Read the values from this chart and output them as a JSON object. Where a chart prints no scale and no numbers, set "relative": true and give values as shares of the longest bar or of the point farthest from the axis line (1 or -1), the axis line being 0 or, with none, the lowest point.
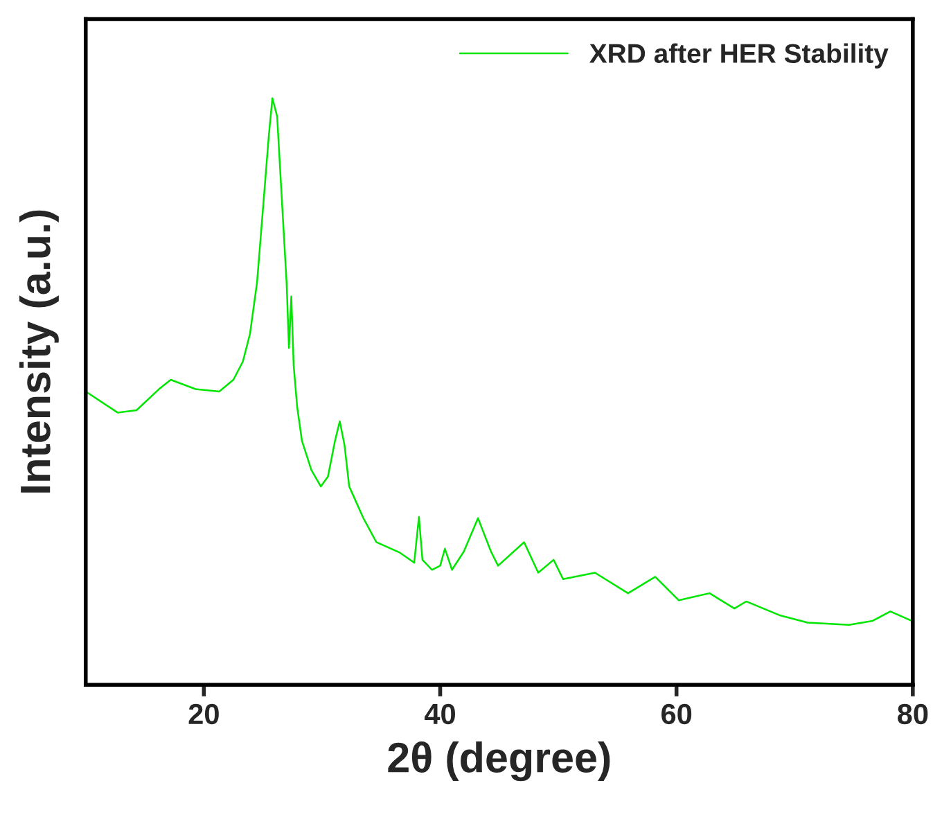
{
  "chart_data": {
    "type": "line",
    "xlabel": "2θ (degree)",
    "ylabel": "Intensity (a.u.)",
    "relative": true,
    "xlim": [
      10,
      80
    ],
    "xticks": [
      20,
      40,
      60,
      80
    ],
    "legend": "top right",
    "grid": false,
    "marker": "none",
    "line_style": "solid",
    "series": [
      {
        "name": "XRD after HER Stability",
        "color": "#00e600",
        "x": [
          10,
          12.7,
          14.3,
          16.2,
          17.2,
          19.3,
          21.3,
          22.5,
          23.3,
          23.9,
          24.5,
          25.0,
          25.5,
          25.8,
          26.2,
          26.6,
          27.0,
          27.2,
          27.4,
          27.6,
          27.9,
          28.3,
          29.1,
          29.9,
          30.5,
          31.1,
          31.5,
          31.9,
          32.3,
          33.5,
          34.6,
          36.6,
          37.8,
          38.2,
          38.5,
          39.3,
          40.0,
          40.4,
          41.0,
          42.0,
          43.2,
          44.3,
          44.9,
          47.1,
          48.3,
          49.6,
          50.4,
          53.1,
          55.9,
          58.2,
          60.2,
          62.8,
          64.9,
          65.9,
          68.8,
          71.1,
          74.6,
          76.6,
          78.1,
          79.9
        ],
        "values": [
          0.5,
          0.464,
          0.468,
          0.504,
          0.52,
          0.504,
          0.5,
          0.52,
          0.551,
          0.598,
          0.686,
          0.811,
          0.937,
          1.0,
          0.969,
          0.827,
          0.686,
          0.574,
          0.662,
          0.544,
          0.473,
          0.416,
          0.366,
          0.338,
          0.355,
          0.416,
          0.449,
          0.409,
          0.338,
          0.284,
          0.243,
          0.225,
          0.208,
          0.286,
          0.213,
          0.196,
          0.203,
          0.232,
          0.196,
          0.227,
          0.284,
          0.227,
          0.203,
          0.243,
          0.191,
          0.213,
          0.18,
          0.191,
          0.156,
          0.184,
          0.144,
          0.156,
          0.13,
          0.142,
          0.118,
          0.106,
          0.102,
          0.109,
          0.125,
          0.109
        ]
      }
    ]
  }
}
